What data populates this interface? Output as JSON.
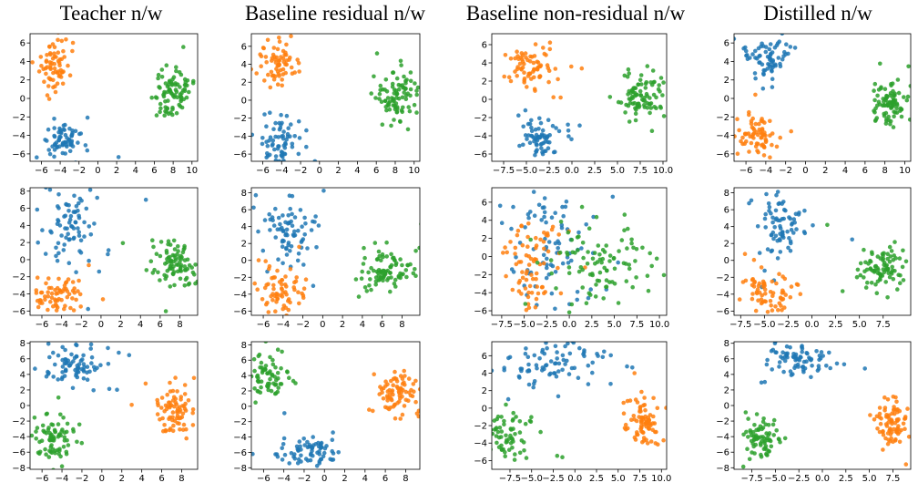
{
  "figure": {
    "column_titles": [
      "Teacher n/w",
      "Baseline residual n/w",
      "Baseline non-residual n/w",
      "Distilled n/w"
    ]
  },
  "colors": {
    "blue": "#1f77b4",
    "orange": "#ff7f0e",
    "green": "#2ca02c"
  },
  "chart_data": [
    {
      "type": "scatter",
      "row": 0,
      "col": 0,
      "xlim": [
        -7.2,
        10.6
      ],
      "ylim": [
        -6.8,
        7.0
      ],
      "xticks": [
        -6,
        -4,
        -2,
        0,
        2,
        4,
        6,
        8,
        10
      ],
      "yticks": [
        -6,
        -4,
        -2,
        0,
        2,
        4,
        6
      ],
      "xtick_labels": [
        "−6",
        "−4",
        "−2",
        "0",
        "2",
        "4",
        "6",
        "8",
        "10"
      ],
      "ytick_labels": [
        "−6",
        "−4",
        "−2",
        "0",
        "2",
        "4",
        "6"
      ],
      "clusters": [
        {
          "color": "orange",
          "cx": -4.8,
          "cy": 3.6,
          "sx": 0.9,
          "sy": 1.2,
          "n": 70
        },
        {
          "color": "blue",
          "cx": -3.8,
          "cy": -4.5,
          "sx": 1.0,
          "sy": 1.0,
          "n": 70
        },
        {
          "color": "green",
          "cx": 8.2,
          "cy": 0.5,
          "sx": 1.0,
          "sy": 1.3,
          "n": 90
        }
      ]
    },
    {
      "type": "scatter",
      "row": 0,
      "col": 1,
      "xlim": [
        -7.2,
        10.6
      ],
      "ylim": [
        -6.8,
        7.4
      ],
      "xticks": [
        -6,
        -4,
        -2,
        0,
        2,
        4,
        6,
        8,
        10
      ],
      "yticks": [
        -6,
        -4,
        -2,
        0,
        2,
        4,
        6
      ],
      "xtick_labels": [
        "−6",
        "−4",
        "−2",
        "0",
        "2",
        "4",
        "6",
        "8",
        "10"
      ],
      "ytick_labels": [
        "−6",
        "−4",
        "−2",
        "0",
        "2",
        "4",
        "6"
      ],
      "clusters": [
        {
          "color": "orange",
          "cx": -4.5,
          "cy": 4.0,
          "sx": 0.9,
          "sy": 1.3,
          "n": 70
        },
        {
          "color": "blue",
          "cx": -4.0,
          "cy": -4.5,
          "sx": 1.2,
          "sy": 1.1,
          "n": 70
        },
        {
          "color": "green",
          "cx": 8.0,
          "cy": 0.5,
          "sx": 1.1,
          "sy": 1.3,
          "n": 90
        }
      ]
    },
    {
      "type": "scatter",
      "row": 0,
      "col": 2,
      "xlim": [
        -8.8,
        10.4
      ],
      "ylim": [
        -6.8,
        7.2
      ],
      "xticks": [
        -7.5,
        -5.0,
        -2.5,
        0.0,
        2.5,
        5.0,
        7.5,
        10.0
      ],
      "yticks": [
        -6,
        -4,
        -2,
        0,
        2,
        4,
        6
      ],
      "xtick_labels": [
        "−7.5",
        "−5.0",
        "−2.5",
        "0.0",
        "2.5",
        "5.0",
        "7.5",
        "10.0"
      ],
      "ytick_labels": [
        "−6",
        "−4",
        "−2",
        "0",
        "2",
        "4",
        "6"
      ],
      "clusters": [
        {
          "color": "orange",
          "cx": -4.5,
          "cy": 3.5,
          "sx": 1.2,
          "sy": 1.4,
          "n": 75
        },
        {
          "color": "blue",
          "cx": -3.5,
          "cy": -4.0,
          "sx": 1.0,
          "sy": 1.0,
          "n": 70
        },
        {
          "color": "green",
          "cx": 7.5,
          "cy": 0.3,
          "sx": 1.2,
          "sy": 1.3,
          "n": 90
        }
      ]
    },
    {
      "type": "scatter",
      "row": 0,
      "col": 3,
      "xlim": [
        -7.2,
        10.6
      ],
      "ylim": [
        -6.8,
        7.0
      ],
      "xticks": [
        -6,
        -4,
        -2,
        0,
        2,
        4,
        6,
        8,
        10
      ],
      "yticks": [
        -6,
        -4,
        -2,
        0,
        2,
        4,
        6
      ],
      "xtick_labels": [
        "−6",
        "−4",
        "−2",
        "0",
        "2",
        "4",
        "6",
        "8",
        "10"
      ],
      "ytick_labels": [
        "−6",
        "−4",
        "−2",
        "0",
        "2",
        "4",
        "6"
      ],
      "clusters": [
        {
          "color": "blue",
          "cx": -3.8,
          "cy": 4.5,
          "sx": 1.0,
          "sy": 1.2,
          "n": 70
        },
        {
          "color": "orange",
          "cx": -4.8,
          "cy": -4.0,
          "sx": 1.0,
          "sy": 1.2,
          "n": 70
        },
        {
          "color": "green",
          "cx": 8.5,
          "cy": -0.5,
          "sx": 1.0,
          "sy": 1.2,
          "n": 90
        }
      ]
    },
    {
      "type": "scatter",
      "row": 1,
      "col": 0,
      "xlim": [
        -7.2,
        9.8
      ],
      "ylim": [
        -6.5,
        8.4
      ],
      "xticks": [
        -6,
        -4,
        -2,
        0,
        2,
        4,
        6,
        8
      ],
      "yticks": [
        -6,
        -4,
        -2,
        0,
        2,
        4,
        6,
        8
      ],
      "xtick_labels": [
        "−6",
        "−4",
        "−2",
        "0",
        "2",
        "4",
        "6",
        "8"
      ],
      "ytick_labels": [
        "−6",
        "−4",
        "−2",
        "0",
        "2",
        "4",
        "6",
        "8"
      ],
      "clusters": [
        {
          "color": "blue",
          "cx": -3.2,
          "cy": 4.0,
          "sx": 1.5,
          "sy": 2.0,
          "n": 80
        },
        {
          "color": "orange",
          "cx": -4.5,
          "cy": -4.0,
          "sx": 1.2,
          "sy": 1.2,
          "n": 70
        },
        {
          "color": "green",
          "cx": 7.5,
          "cy": -0.6,
          "sx": 1.2,
          "sy": 1.3,
          "n": 90
        }
      ]
    },
    {
      "type": "scatter",
      "row": 1,
      "col": 1,
      "xlim": [
        -7.2,
        9.8
      ],
      "ylim": [
        -6.5,
        8.6
      ],
      "xticks": [
        -6,
        -4,
        -2,
        0,
        2,
        4,
        6,
        8
      ],
      "yticks": [
        -6,
        -4,
        -2,
        0,
        2,
        4,
        6,
        8
      ],
      "xtick_labels": [
        "−6",
        "−4",
        "−2",
        "0",
        "2",
        "4",
        "6",
        "8"
      ],
      "ytick_labels": [
        "−6",
        "−4",
        "−2",
        "0",
        "2",
        "4",
        "6",
        "8"
      ],
      "clusters": [
        {
          "color": "blue",
          "cx": -3.0,
          "cy": 3.8,
          "sx": 1.6,
          "sy": 2.0,
          "n": 80
        },
        {
          "color": "orange",
          "cx": -4.2,
          "cy": -3.8,
          "sx": 1.3,
          "sy": 1.3,
          "n": 70
        },
        {
          "color": "green",
          "cx": 6.5,
          "cy": -0.8,
          "sx": 1.2,
          "sy": 1.3,
          "n": 90
        }
      ]
    },
    {
      "type": "scatter",
      "row": 1,
      "col": 2,
      "xlim": [
        -8.6,
        10.8
      ],
      "ylim": [
        -6.5,
        7.6
      ],
      "xticks": [
        -7.5,
        -5.0,
        -2.5,
        0.0,
        2.5,
        5.0,
        7.5,
        10.0
      ],
      "yticks": [
        -6,
        -4,
        -2,
        0,
        2,
        4,
        6
      ],
      "xtick_labels": [
        "−7.5",
        "−5.0",
        "−2.5",
        "0.0",
        "2.5",
        "5.0",
        "7.5",
        "10.0"
      ],
      "ytick_labels": [
        "−6",
        "−4",
        "−2",
        "0",
        "2",
        "4",
        "6"
      ],
      "clusters": [
        {
          "color": "blue",
          "cx": -1.5,
          "cy": 0.5,
          "sx": 3.0,
          "sy": 3.2,
          "n": 90
        },
        {
          "color": "orange",
          "cx": -4.0,
          "cy": -1.0,
          "sx": 1.8,
          "sy": 2.5,
          "n": 80
        },
        {
          "color": "green",
          "cx": 4.0,
          "cy": -0.5,
          "sx": 3.0,
          "sy": 2.2,
          "n": 100
        }
      ]
    },
    {
      "type": "scatter",
      "row": 1,
      "col": 3,
      "xlim": [
        -8.2,
        10.4
      ],
      "ylim": [
        -6.5,
        8.6
      ],
      "xticks": [
        -7.5,
        -5.0,
        -2.5,
        0.0,
        2.5,
        5.0,
        7.5
      ],
      "yticks": [
        -6,
        -4,
        -2,
        0,
        2,
        4,
        6,
        8
      ],
      "xtick_labels": [
        "−7.5",
        "−5.0",
        "−2.5",
        "0.0",
        "2.5",
        "5.0",
        "7.5"
      ],
      "ytick_labels": [
        "−6",
        "−4",
        "−2",
        "0",
        "2",
        "4",
        "6",
        "8"
      ],
      "clusters": [
        {
          "color": "blue",
          "cx": -3.5,
          "cy": 4.0,
          "sx": 1.4,
          "sy": 2.0,
          "n": 80
        },
        {
          "color": "orange",
          "cx": -4.5,
          "cy": -3.8,
          "sx": 1.2,
          "sy": 1.3,
          "n": 70
        },
        {
          "color": "green",
          "cx": 7.5,
          "cy": -0.6,
          "sx": 1.3,
          "sy": 1.2,
          "n": 90
        }
      ]
    },
    {
      "type": "scatter",
      "row": 2,
      "col": 0,
      "xlim": [
        -7.2,
        9.6
      ],
      "ylim": [
        -8.2,
        8.2
      ],
      "xticks": [
        -6,
        -4,
        -2,
        0,
        2,
        4,
        6,
        8
      ],
      "yticks": [
        -8,
        -6,
        -4,
        -2,
        0,
        2,
        4,
        6,
        8
      ],
      "xtick_labels": [
        "−6",
        "−4",
        "−2",
        "0",
        "2",
        "4",
        "6",
        "8"
      ],
      "ytick_labels": [
        "−8",
        "−6",
        "−4",
        "−2",
        "0",
        "2",
        "4",
        "6",
        "8"
      ],
      "clusters": [
        {
          "color": "blue",
          "cx": -3.0,
          "cy": 5.5,
          "sx": 1.6,
          "sy": 1.2,
          "n": 80
        },
        {
          "color": "green",
          "cx": -4.8,
          "cy": -4.5,
          "sx": 1.1,
          "sy": 1.4,
          "n": 80
        },
        {
          "color": "orange",
          "cx": 7.5,
          "cy": -0.5,
          "sx": 1.0,
          "sy": 1.5,
          "n": 80
        }
      ]
    },
    {
      "type": "scatter",
      "row": 2,
      "col": 1,
      "xlim": [
        -7.2,
        9.4
      ],
      "ylim": [
        -8.2,
        8.4
      ],
      "xticks": [
        -6,
        -4,
        -2,
        0,
        2,
        4,
        6,
        8
      ],
      "yticks": [
        -8,
        -6,
        -4,
        -2,
        0,
        2,
        4,
        6,
        8
      ],
      "xtick_labels": [
        "−6",
        "−4",
        "−2",
        "0",
        "2",
        "4",
        "6",
        "8"
      ],
      "ytick_labels": [
        "−8",
        "−6",
        "−4",
        "−2",
        "0",
        "2",
        "4",
        "6",
        "8"
      ],
      "clusters": [
        {
          "color": "green",
          "cx": -5.5,
          "cy": 4.0,
          "sx": 1.0,
          "sy": 1.5,
          "n": 75
        },
        {
          "color": "blue",
          "cx": -1.5,
          "cy": -6.0,
          "sx": 1.6,
          "sy": 0.9,
          "n": 75
        },
        {
          "color": "orange",
          "cx": 7.2,
          "cy": 2.0,
          "sx": 1.0,
          "sy": 1.6,
          "n": 80
        }
      ]
    },
    {
      "type": "scatter",
      "row": 2,
      "col": 2,
      "xlim": [
        -9.6,
        10.6
      ],
      "ylim": [
        -7.0,
        7.6
      ],
      "xticks": [
        -7.5,
        -5.0,
        -2.5,
        0.0,
        2.5,
        5.0,
        7.5,
        10.0
      ],
      "yticks": [
        -6,
        -4,
        -2,
        0,
        2,
        4,
        6
      ],
      "xtick_labels": [
        "−7.5",
        "−5.0",
        "−2.5",
        "0.0",
        "2.5",
        "5.0",
        "7.5",
        "10.0"
      ],
      "ytick_labels": [
        "−6",
        "−4",
        "−2",
        "0",
        "2",
        "4",
        "6"
      ],
      "clusters": [
        {
          "color": "blue",
          "cx": -2.5,
          "cy": 5.0,
          "sx": 3.0,
          "sy": 1.4,
          "n": 90
        },
        {
          "color": "green",
          "cx": -7.5,
          "cy": -3.0,
          "sx": 1.3,
          "sy": 1.6,
          "n": 70
        },
        {
          "color": "orange",
          "cx": 8.0,
          "cy": -1.5,
          "sx": 1.0,
          "sy": 1.6,
          "n": 80
        }
      ]
    },
    {
      "type": "scatter",
      "row": 2,
      "col": 3,
      "xlim": [
        -9.4,
        9.4
      ],
      "ylim": [
        -8.2,
        8.2
      ],
      "xticks": [
        -7.5,
        -5.0,
        -2.5,
        0.0,
        2.5,
        5.0,
        7.5
      ],
      "yticks": [
        -8,
        -6,
        -4,
        -2,
        0,
        2,
        4,
        6,
        8
      ],
      "xtick_labels": [
        "−7.5",
        "−5.0",
        "−2.5",
        "0.0",
        "2.5",
        "5.0",
        "7.5"
      ],
      "ytick_labels": [
        "−8",
        "−6",
        "−4",
        "−2",
        "0",
        "2",
        "4",
        "6",
        "8"
      ],
      "clusters": [
        {
          "color": "blue",
          "cx": -2.5,
          "cy": 6.0,
          "sx": 1.6,
          "sy": 1.0,
          "n": 80
        },
        {
          "color": "green",
          "cx": -6.5,
          "cy": -4.5,
          "sx": 0.9,
          "sy": 1.3,
          "n": 75
        },
        {
          "color": "orange",
          "cx": 7.5,
          "cy": -2.0,
          "sx": 0.9,
          "sy": 1.5,
          "n": 80
        }
      ]
    }
  ]
}
